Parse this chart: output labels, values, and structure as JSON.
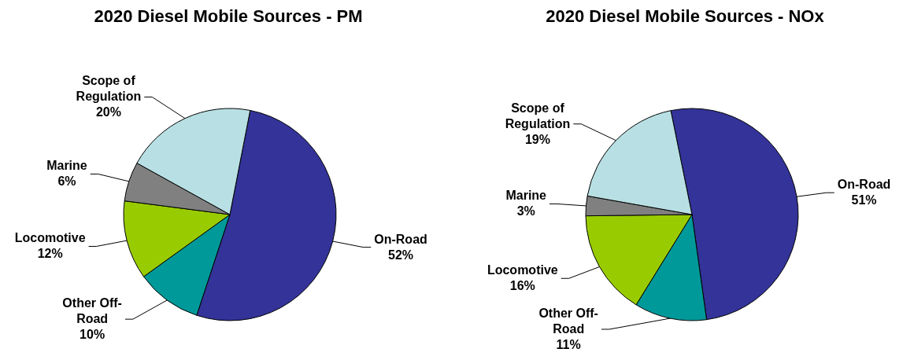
{
  "chart_data": [
    {
      "type": "pie",
      "title": "2020 Diesel Mobile Sources - PM",
      "categories": [
        "On-Road",
        "Other Off-Road",
        "Locomotive",
        "Marine",
        "Scope of Regulation"
      ],
      "values": [
        52,
        10,
        12,
        6,
        20
      ],
      "colors": [
        "#333399",
        "#009999",
        "#99cc00",
        "#808080",
        "#b8e0e4"
      ],
      "value_labels": [
        "52%",
        "10%",
        "12%",
        "6%",
        "20%"
      ]
    },
    {
      "type": "pie",
      "title": "2020 Diesel Mobile Sources - NOx",
      "categories": [
        "On-Road",
        "Other Off-Road",
        "Locomotive",
        "Marine",
        "Scope of Regulation"
      ],
      "values": [
        51,
        11,
        16,
        3,
        19
      ],
      "colors": [
        "#333399",
        "#009999",
        "#99cc00",
        "#808080",
        "#b8e0e4"
      ],
      "value_labels": [
        "51%",
        "11%",
        "16%",
        "3%",
        "19%"
      ]
    }
  ]
}
